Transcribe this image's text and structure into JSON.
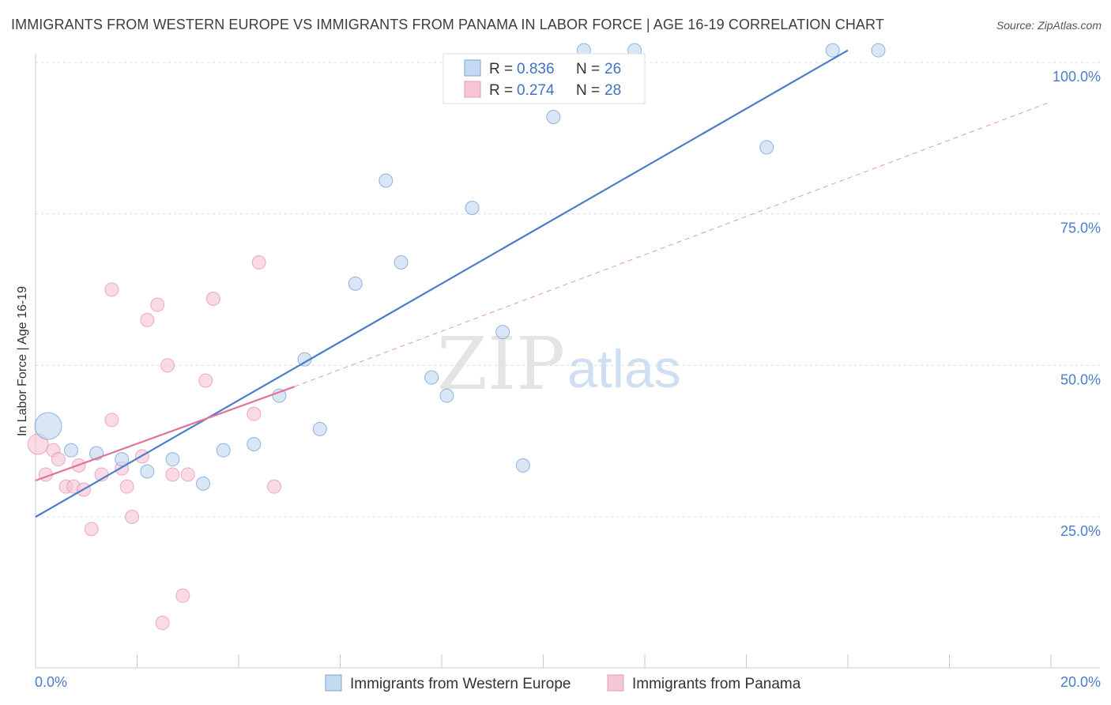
{
  "header": {
    "title": "IMMIGRANTS FROM WESTERN EUROPE VS IMMIGRANTS FROM PANAMA IN LABOR FORCE | AGE 16-19 CORRELATION CHART",
    "source": "Source: ZipAtlas.com"
  },
  "watermark": {
    "zip": "ZIP",
    "atlas": "atlas"
  },
  "chart_data": {
    "type": "scatter",
    "title": "IMMIGRANTS FROM WESTERN EUROPE VS IMMIGRANTS FROM PANAMA IN LABOR FORCE | AGE 16-19 CORRELATION CHART",
    "xlabel": "",
    "ylabel": "In Labor Force | Age 16-19",
    "xlim": [
      0,
      20
    ],
    "ylim": [
      0,
      102
    ],
    "x_tick_labels": {
      "left": "0.0%",
      "right": "20.0%"
    },
    "y_ticks": [
      25,
      50,
      75,
      100
    ],
    "y_tick_labels": [
      "25.0%",
      "50.0%",
      "75.0%",
      "100.0%"
    ],
    "legend": [
      {
        "r_label": "R = ",
        "r_value": "0.836",
        "n_label": "N = ",
        "n_value": "26"
      },
      {
        "r_label": "R = ",
        "r_value": "0.274",
        "n_label": "N = ",
        "n_value": "28"
      }
    ],
    "series": [
      {
        "name": "Immigrants from Western Europe",
        "color": "#4a7ec8",
        "fill": "#c5d9f1",
        "points": [
          {
            "x": 0.25,
            "y": 40.0,
            "big": true
          },
          {
            "x": 0.7,
            "y": 36.0
          },
          {
            "x": 1.2,
            "y": 35.5
          },
          {
            "x": 1.7,
            "y": 34.5
          },
          {
            "x": 2.2,
            "y": 32.5
          },
          {
            "x": 2.7,
            "y": 34.5
          },
          {
            "x": 3.3,
            "y": 30.5
          },
          {
            "x": 3.7,
            "y": 36.0
          },
          {
            "x": 4.3,
            "y": 37.0
          },
          {
            "x": 4.8,
            "y": 45.0
          },
          {
            "x": 5.3,
            "y": 51.0
          },
          {
            "x": 5.6,
            "y": 39.5
          },
          {
            "x": 6.3,
            "y": 63.5
          },
          {
            "x": 6.9,
            "y": 80.5
          },
          {
            "x": 7.2,
            "y": 67.0
          },
          {
            "x": 7.8,
            "y": 48.0
          },
          {
            "x": 8.1,
            "y": 45.0
          },
          {
            "x": 8.6,
            "y": 76.0
          },
          {
            "x": 9.2,
            "y": 55.5
          },
          {
            "x": 9.6,
            "y": 33.5
          },
          {
            "x": 10.2,
            "y": 91.0
          },
          {
            "x": 10.8,
            "y": 102.0
          },
          {
            "x": 11.8,
            "y": 102.0
          },
          {
            "x": 14.4,
            "y": 86.0
          },
          {
            "x": 15.7,
            "y": 102.0
          },
          {
            "x": 16.6,
            "y": 102.0
          }
        ],
        "trend": {
          "x0": 0,
          "y0": 25.0,
          "x1": 16.0,
          "y1": 102.0
        }
      },
      {
        "name": "Immigrants from Panama",
        "color": "#e0739a",
        "fill": "#f7c6d6",
        "points": [
          {
            "x": 0.05,
            "y": 37.0,
            "big": true
          },
          {
            "x": 0.2,
            "y": 32.0
          },
          {
            "x": 0.35,
            "y": 36.0
          },
          {
            "x": 0.45,
            "y": 34.5
          },
          {
            "x": 0.6,
            "y": 30.0
          },
          {
            "x": 0.75,
            "y": 30.0
          },
          {
            "x": 0.85,
            "y": 33.5
          },
          {
            "x": 0.95,
            "y": 29.5
          },
          {
            "x": 1.1,
            "y": 23.0
          },
          {
            "x": 1.3,
            "y": 32.0
          },
          {
            "x": 1.5,
            "y": 62.5
          },
          {
            "x": 1.5,
            "y": 41.0
          },
          {
            "x": 1.7,
            "y": 33.0
          },
          {
            "x": 1.8,
            "y": 30.0
          },
          {
            "x": 1.9,
            "y": 25.0
          },
          {
            "x": 2.1,
            "y": 35.0
          },
          {
            "x": 2.2,
            "y": 57.5
          },
          {
            "x": 2.4,
            "y": 60.0
          },
          {
            "x": 2.5,
            "y": 7.5
          },
          {
            "x": 2.6,
            "y": 50.0
          },
          {
            "x": 2.7,
            "y": 32.0
          },
          {
            "x": 2.9,
            "y": 12.0
          },
          {
            "x": 3.0,
            "y": 32.0
          },
          {
            "x": 3.35,
            "y": 47.5
          },
          {
            "x": 3.5,
            "y": 61.0
          },
          {
            "x": 4.3,
            "y": 42.0
          },
          {
            "x": 4.4,
            "y": 67.0
          },
          {
            "x": 4.7,
            "y": 30.0
          }
        ],
        "trend": {
          "x0": 0,
          "y0": 31.0,
          "x1": 5.1,
          "y1": 46.5
        },
        "trend_dashed": {
          "x0": 5.1,
          "y0": 46.5,
          "x1": 20.0,
          "y1": 93.5
        }
      }
    ]
  },
  "bottom_legend": [
    {
      "label": "Immigrants from Western Europe"
    },
    {
      "label": "Immigrants from Panama"
    }
  ]
}
